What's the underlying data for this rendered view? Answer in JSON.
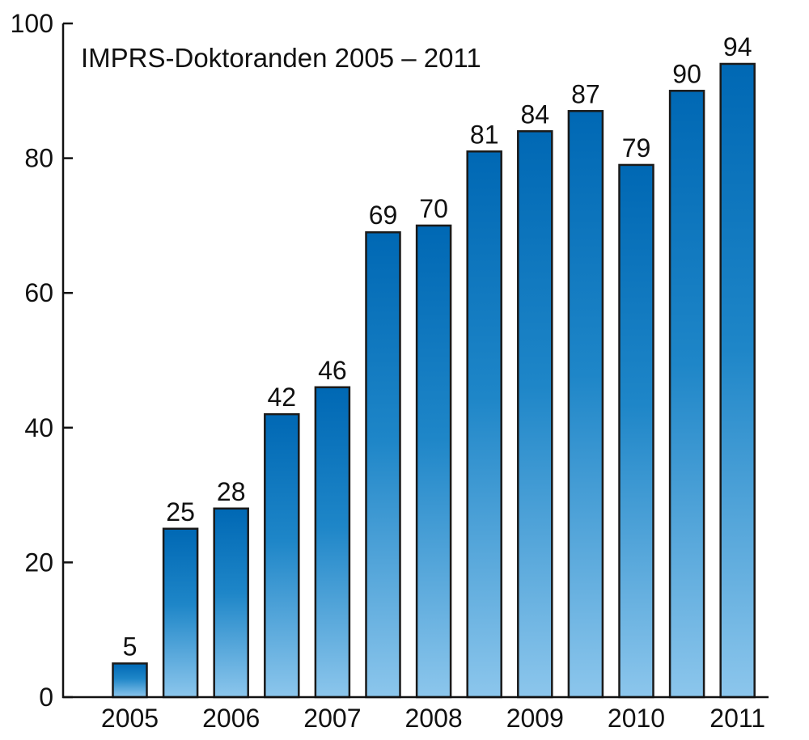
{
  "chart_data": {
    "type": "bar",
    "title": "IMPRS-Doktoranden 2005 – 2011",
    "bars": [
      5,
      25,
      28,
      42,
      46,
      69,
      70,
      81,
      84,
      87,
      79,
      90,
      94
    ],
    "x_labels": [
      "2005",
      "2006",
      "2007",
      "2008",
      "2009",
      "2010",
      "2011"
    ],
    "y_ticks": [
      0,
      20,
      40,
      60,
      80,
      100
    ],
    "ylim": [
      0,
      100
    ],
    "grid": false,
    "legend": "none",
    "bar_gradient": {
      "top": "#0068b4",
      "mid": "#1e86c8",
      "bottom": "#8cc6ec"
    }
  }
}
